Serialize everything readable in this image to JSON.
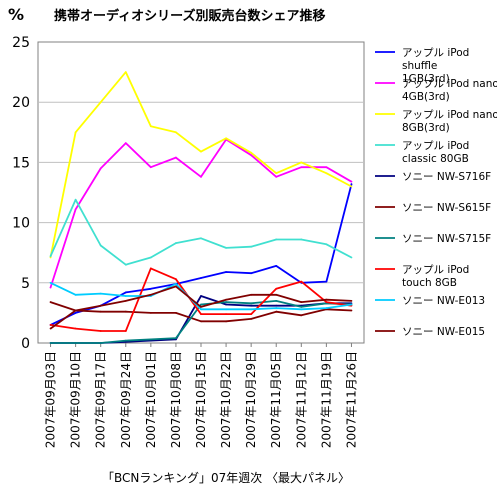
{
  "chart_data": {
    "type": "line",
    "title": "携帯オーディオシリーズ別販売台数シェア推移",
    "y_unit": "%",
    "xlabel": "「BCNランキング」07年週次 〈最大パネル〉",
    "ylabel": "",
    "ylim": [
      0,
      25
    ],
    "yticks": [
      "0",
      "5",
      "10",
      "15",
      "20",
      "25"
    ],
    "grid": "horizontal",
    "legend": "right",
    "x": [
      "2007年09月03日",
      "2007年09月10日",
      "2007年09月17日",
      "2007年09月24日",
      "2007年10月01日",
      "2007年10月08日",
      "2007年10月15日",
      "2007年10月22日",
      "2007年10月29日",
      "2007年11月05日",
      "2007年11月12日",
      "2007年11月19日",
      "2007年11月26日"
    ],
    "series": [
      {
        "name": "アップル iPod shuffle 1GB(3rd)",
        "color": "#0000ff",
        "values": [
          1.5,
          2.5,
          3.1,
          4.2,
          4.5,
          4.9,
          5.4,
          5.9,
          5.8,
          6.4,
          5.0,
          5.1,
          13.2
        ]
      },
      {
        "name": "アップル iPod nano 4GB(3rd)",
        "color": "#ff00ff",
        "values": [
          4.6,
          11.1,
          14.5,
          16.6,
          14.6,
          15.4,
          13.8,
          16.9,
          15.6,
          13.8,
          14.6,
          14.6,
          13.4
        ]
      },
      {
        "name": "アップル iPod nano 8GB(3rd)",
        "color": "#ffff00",
        "values": [
          7.1,
          17.5,
          20.0,
          22.5,
          18.0,
          17.5,
          15.9,
          17.0,
          15.8,
          14.1,
          15.0,
          14.1,
          13.0
        ]
      },
      {
        "name": "アップル iPod classic 80GB",
        "color": "#40e0d0",
        "values": [
          7.2,
          11.9,
          8.1,
          6.5,
          7.1,
          8.3,
          8.7,
          7.9,
          8.0,
          8.6,
          8.6,
          8.2,
          7.1
        ]
      },
      {
        "name": "ソニー NW-S716F",
        "color": "#000080",
        "values": [
          0.0,
          0.0,
          0.0,
          0.1,
          0.2,
          0.3,
          3.9,
          3.2,
          3.1,
          3.1,
          3.1,
          3.3,
          3.3
        ]
      },
      {
        "name": "ソニー NW-S615F",
        "color": "#800000",
        "values": [
          3.4,
          2.7,
          2.6,
          2.6,
          2.5,
          2.5,
          1.8,
          1.8,
          2.0,
          2.6,
          2.3,
          2.8,
          2.7
        ]
      },
      {
        "name": "ソニー NW-S715F",
        "color": "#008080",
        "values": [
          0.0,
          0.0,
          0.0,
          0.2,
          0.3,
          0.4,
          3.2,
          3.4,
          3.3,
          3.5,
          3.0,
          3.3,
          3.2
        ]
      },
      {
        "name": "アップル iPod touch 8GB",
        "color": "#ff0000",
        "values": [
          1.5,
          1.2,
          1.0,
          1.0,
          6.2,
          5.3,
          2.4,
          2.4,
          2.4,
          4.5,
          5.1,
          3.4,
          3.1
        ]
      },
      {
        "name": "ソニー NW-E013",
        "color": "#00ccff",
        "values": [
          5.0,
          4.0,
          4.1,
          3.9,
          3.9,
          4.9,
          2.8,
          2.8,
          2.8,
          2.9,
          2.8,
          2.9,
          3.2
        ]
      },
      {
        "name": "ソニー NW-E015",
        "color": "#800000",
        "values": [
          1.2,
          2.7,
          3.1,
          3.5,
          4.0,
          4.7,
          3.0,
          3.6,
          4.0,
          4.0,
          3.4,
          3.6,
          3.5
        ]
      }
    ]
  }
}
